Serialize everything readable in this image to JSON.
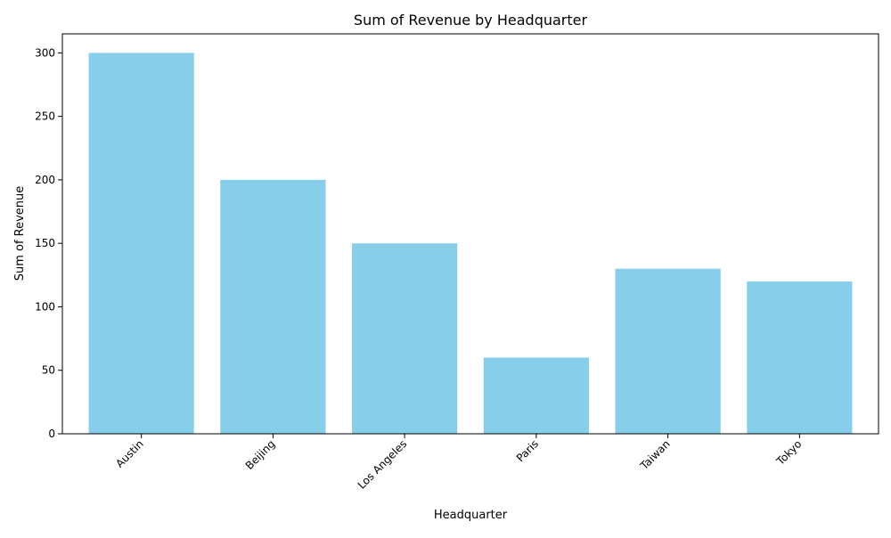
{
  "colors": {
    "bar": "#87ceeb",
    "axis": "#000000",
    "background": "#ffffff"
  },
  "chart_data": {
    "type": "bar",
    "title": "Sum of Revenue by Headquarter",
    "xlabel": "Headquarter",
    "ylabel": "Sum of Revenue",
    "categories": [
      "Austin",
      "Beijing",
      "Los Angeles",
      "Paris",
      "Taiwan",
      "Tokyo"
    ],
    "values": [
      300,
      200,
      150,
      60,
      130,
      120
    ],
    "ylim": [
      0,
      315
    ],
    "yticks": [
      0,
      50,
      100,
      150,
      200,
      250,
      300
    ],
    "x_tick_rotation_deg": 45,
    "grid": false,
    "legend": "none"
  }
}
